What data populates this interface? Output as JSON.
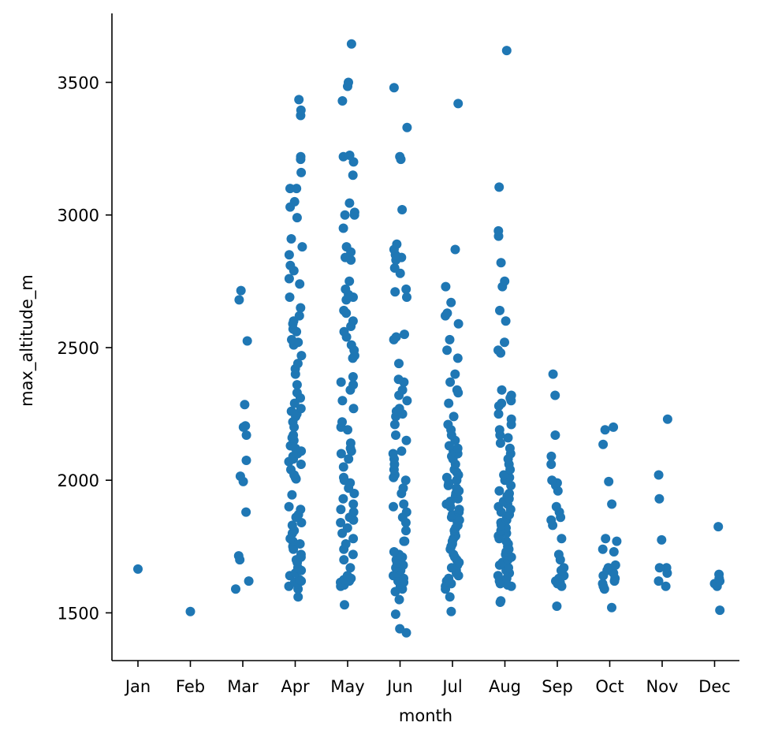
{
  "chart_data": {
    "type": "scatter",
    "subtype": "categorical strip plot",
    "xlabel": "month",
    "ylabel": "max_altitude_m",
    "categories": [
      "Jan",
      "Feb",
      "Mar",
      "Apr",
      "May",
      "Jun",
      "Jul",
      "Aug",
      "Sep",
      "Oct",
      "Nov",
      "Dec"
    ],
    "ylim": [
      1320,
      3760
    ],
    "yticks": [
      1500,
      2000,
      2500,
      3000,
      3500
    ],
    "grid": false,
    "legend": "none",
    "point_color": "#1f77b4",
    "values": [
      [
        1665
      ],
      [
        1505
      ],
      [
        1590,
        1620,
        1700,
        1715,
        1880,
        1995,
        2015,
        2075,
        2170,
        2200,
        2205,
        2285,
        2525,
        2680,
        2715
      ],
      [
        1560,
        1590,
        1600,
        1610,
        1615,
        1620,
        1625,
        1640,
        1650,
        1660,
        1670,
        1690,
        1700,
        1710,
        1720,
        1740,
        1750,
        1760,
        1770,
        1780,
        1800,
        1810,
        1830,
        1840,
        1860,
        1870,
        1890,
        1900,
        1945,
        2005,
        2010,
        2020,
        2040,
        2060,
        2070,
        2080,
        2090,
        2100,
        2110,
        2120,
        2130,
        2150,
        2160,
        2170,
        2200,
        2220,
        2240,
        2250,
        2260,
        2270,
        2290,
        2310,
        2330,
        2360,
        2400,
        2420,
        2440,
        2470,
        2510,
        2520,
        2530,
        2560,
        2570,
        2590,
        2600,
        2620,
        2650,
        2690,
        2740,
        2760,
        2790,
        2810,
        2850,
        2880,
        2910,
        2990,
        3030,
        3050,
        3100,
        3100,
        3160,
        3210,
        3220,
        3375,
        3395,
        3435
      ],
      [
        1530,
        1600,
        1605,
        1610,
        1615,
        1620,
        1625,
        1630,
        1640,
        1670,
        1700,
        1720,
        1740,
        1760,
        1780,
        1800,
        1820,
        1840,
        1850,
        1860,
        1880,
        1890,
        1910,
        1930,
        1950,
        1970,
        1990,
        2000,
        2010,
        2050,
        2080,
        2100,
        2110,
        2120,
        2140,
        2190,
        2200,
        2220,
        2270,
        2300,
        2340,
        2360,
        2370,
        2390,
        2460,
        2470,
        2490,
        2510,
        2540,
        2560,
        2580,
        2600,
        2630,
        2640,
        2680,
        2690,
        2700,
        2720,
        2750,
        2830,
        2840,
        2860,
        2880,
        2950,
        3000,
        3000,
        3010,
        3045,
        3150,
        3200,
        3220,
        3225,
        3430,
        3485,
        3500,
        3645
      ],
      [
        1425,
        1440,
        1495,
        1550,
        1580,
        1590,
        1600,
        1605,
        1610,
        1615,
        1620,
        1630,
        1640,
        1650,
        1660,
        1670,
        1680,
        1690,
        1700,
        1710,
        1720,
        1730,
        1770,
        1770,
        1810,
        1840,
        1860,
        1880,
        1900,
        1910,
        1950,
        1970,
        2000,
        2010,
        2020,
        2040,
        2060,
        2080,
        2100,
        2110,
        2150,
        2170,
        2210,
        2240,
        2250,
        2260,
        2270,
        2300,
        2320,
        2340,
        2370,
        2380,
        2440,
        2530,
        2540,
        2550,
        2690,
        2710,
        2720,
        2780,
        2800,
        2830,
        2840,
        2850,
        2870,
        2890,
        3020,
        3210,
        3220,
        3330,
        3480
      ],
      [
        1505,
        1560,
        1590,
        1600,
        1610,
        1620,
        1630,
        1640,
        1650,
        1660,
        1670,
        1680,
        1690,
        1700,
        1710,
        1720,
        1740,
        1750,
        1760,
        1770,
        1780,
        1790,
        1800,
        1810,
        1820,
        1830,
        1840,
        1850,
        1860,
        1870,
        1880,
        1890,
        1900,
        1910,
        1920,
        1930,
        1940,
        1950,
        1960,
        1970,
        1980,
        1990,
        2000,
        2010,
        2020,
        2030,
        2040,
        2060,
        2080,
        2090,
        2100,
        2110,
        2120,
        2130,
        2150,
        2170,
        2190,
        2210,
        2240,
        2290,
        2330,
        2340,
        2370,
        2400,
        2460,
        2490,
        2530,
        2590,
        2620,
        2630,
        2670,
        2730,
        2870,
        3420
      ],
      [
        1540,
        1545,
        1600,
        1605,
        1610,
        1620,
        1630,
        1640,
        1650,
        1660,
        1670,
        1680,
        1690,
        1700,
        1710,
        1720,
        1730,
        1740,
        1750,
        1760,
        1770,
        1780,
        1790,
        1800,
        1810,
        1820,
        1830,
        1840,
        1850,
        1860,
        1870,
        1880,
        1890,
        1900,
        1910,
        1920,
        1930,
        1940,
        1950,
        1960,
        1980,
        2000,
        2010,
        2020,
        2040,
        2060,
        2080,
        2100,
        2120,
        2140,
        2160,
        2170,
        2190,
        2210,
        2230,
        2250,
        2280,
        2290,
        2300,
        2310,
        2320,
        2340,
        2480,
        2490,
        2520,
        2600,
        2640,
        2730,
        2750,
        2820,
        2920,
        2940,
        3105,
        3620
      ],
      [
        1525,
        1600,
        1605,
        1610,
        1615,
        1620,
        1630,
        1640,
        1660,
        1670,
        1700,
        1720,
        1780,
        1830,
        1850,
        1860,
        1880,
        1900,
        1960,
        1980,
        1990,
        2000,
        2060,
        2090,
        2170,
        2320,
        2400
      ],
      [
        1520,
        1590,
        1600,
        1610,
        1620,
        1630,
        1640,
        1650,
        1660,
        1670,
        1680,
        1730,
        1740,
        1770,
        1780,
        1910,
        1995,
        2135,
        2190,
        2200
      ],
      [
        1600,
        1620,
        1650,
        1670,
        1670,
        1775,
        1930,
        2020,
        2230
      ],
      [
        1510,
        1600,
        1610,
        1620,
        1630,
        1645,
        1825
      ]
    ]
  }
}
